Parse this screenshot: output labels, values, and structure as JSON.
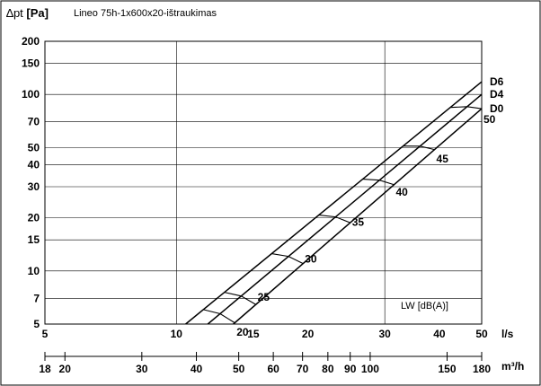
{
  "header": {
    "ylabel_symbol": "∆pt",
    "ylabel_unit": "[Pa]",
    "title": "Lineo 75h-1x600x20-ištraukimas"
  },
  "chart_data": {
    "type": "line",
    "title": "Lineo 75h-1x600x20-ištraukimas",
    "ylabel": "∆pt [Pa]",
    "x_scale": "log",
    "y_scale": "log",
    "xlim_ls": [
      5,
      50
    ],
    "ylim": [
      5,
      200
    ],
    "y_ticks": [
      5,
      7,
      10,
      15,
      20,
      30,
      40,
      50,
      70,
      100,
      150,
      200
    ],
    "x_ticks_ls": [
      5,
      10,
      15,
      20,
      30,
      40,
      50
    ],
    "x_ticks_m3h": [
      18,
      20,
      30,
      40,
      50,
      60,
      70,
      80,
      90,
      100,
      150,
      180
    ],
    "x_unit_ls": "l/s",
    "x_unit_m3h": "m³/h",
    "grid_x_ls": [
      10,
      30
    ],
    "series": [
      {
        "name": "D6",
        "x": [
          10.5,
          50
        ],
        "y": [
          5,
          118
        ]
      },
      {
        "name": "D4",
        "x": [
          11.8,
          50
        ],
        "y": [
          5,
          100
        ]
      },
      {
        "name": "D0",
        "x": [
          13.5,
          50
        ],
        "y": [
          5,
          83
        ]
      }
    ],
    "sound_label": "LW [dB(A)]",
    "sound_levels": [
      {
        "label": "20",
        "x": 13.6,
        "y": 5.0
      },
      {
        "label": "25",
        "x": 15.2,
        "y": 7.9
      },
      {
        "label": "30",
        "x": 19.5,
        "y": 13.0
      },
      {
        "label": "35",
        "x": 25.0,
        "y": 21.0
      },
      {
        "label": "40",
        "x": 31.5,
        "y": 31.0
      },
      {
        "label": "45",
        "x": 39.0,
        "y": 48.0
      },
      {
        "label": "50",
        "x": 50.0,
        "y": 80.0
      }
    ]
  }
}
